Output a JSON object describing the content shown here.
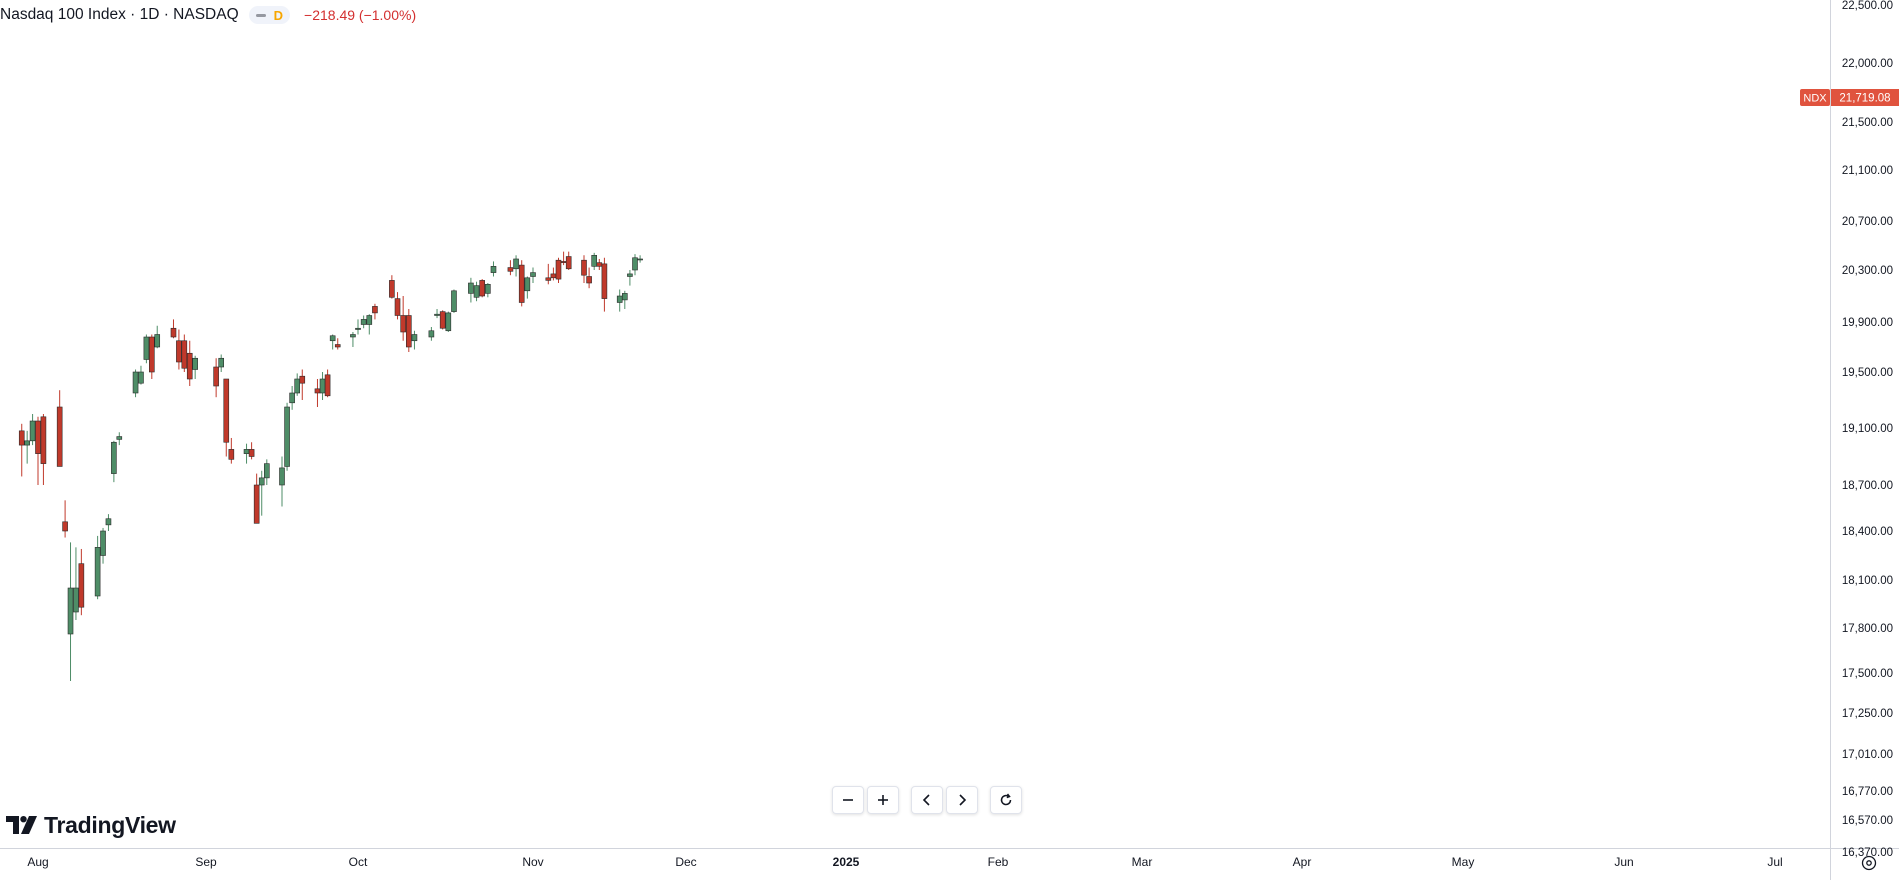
{
  "header": {
    "symbol": "Nasdaq 100 Index · 1D · NASDAQ",
    "interval_badge": "D",
    "change": "−218.49 (−1.00%)"
  },
  "price_tag": {
    "ticker": "NDX",
    "value": "21,719.08"
  },
  "brand": {
    "name": "TradingView"
  },
  "colors": {
    "up": "#4e8d67",
    "down": "#c0392b",
    "tag_bg": "#e0533e",
    "axis": "#131722"
  },
  "icons": [
    "minus-icon",
    "plus-icon",
    "chevron-left-icon",
    "chevron-right-icon",
    "reset-icon",
    "settings-icon"
  ],
  "chart_data": {
    "type": "candlestick",
    "series_name": "NDX",
    "y_ticks": [
      "22,500.00",
      "22,000.00",
      "21,500.00",
      "21,100.00",
      "20,700.00",
      "20,300.00",
      "19,900.00",
      "19,500.00",
      "19,100.00",
      "18,700.00",
      "18,400.00",
      "18,100.00",
      "17,800.00",
      "17,500.00",
      "17,250.00",
      "17,010.00",
      "16,770.00",
      "16,570.00",
      "16,370.00"
    ],
    "x_ticks": [
      "Aug",
      "Sep",
      "Oct",
      "Nov",
      "Dec",
      "2025",
      "Feb",
      "Mar",
      "Apr",
      "May",
      "Jun",
      "Jul"
    ],
    "last_price": 21719.08,
    "ohlc": [
      {
        "d": "2024-07-29",
        "o": 19080,
        "h": 19130,
        "l": 18760,
        "c": 18980
      },
      {
        "d": "2024-07-30",
        "o": 18980,
        "h": 19080,
        "l": 18850,
        "c": 19010
      },
      {
        "d": "2024-07-31",
        "o": 19010,
        "h": 19200,
        "l": 18980,
        "c": 19150
      },
      {
        "d": "2024-08-01",
        "o": 19150,
        "h": 19180,
        "l": 18700,
        "c": 18920
      },
      {
        "d": "2024-08-02",
        "o": 19180,
        "h": 19200,
        "l": 18700,
        "c": 18850
      },
      {
        "d": "2024-08-05",
        "o": 19250,
        "h": 19370,
        "l": 18850,
        "c": 18830
      },
      {
        "d": "2024-08-06",
        "o": 18460,
        "h": 18600,
        "l": 18360,
        "c": 18400
      },
      {
        "d": "2024-08-07",
        "o": 17760,
        "h": 18330,
        "l": 17450,
        "c": 18050
      },
      {
        "d": "2024-08-08",
        "o": 17900,
        "h": 18300,
        "l": 17850,
        "c": 18050
      },
      {
        "d": "2024-08-09",
        "o": 18200,
        "h": 18290,
        "l": 17880,
        "c": 17930
      },
      {
        "d": "2024-08-12",
        "o": 18000,
        "h": 18370,
        "l": 17980,
        "c": 18300
      },
      {
        "d": "2024-08-13",
        "o": 18250,
        "h": 18420,
        "l": 18200,
        "c": 18400
      },
      {
        "d": "2024-08-14",
        "o": 18440,
        "h": 18510,
        "l": 18400,
        "c": 18480
      },
      {
        "d": "2024-08-15",
        "o": 18780,
        "h": 19010,
        "l": 18720,
        "c": 19000
      },
      {
        "d": "2024-08-16",
        "o": 19020,
        "h": 19070,
        "l": 18980,
        "c": 19040
      },
      {
        "d": "2024-08-19",
        "o": 19350,
        "h": 19520,
        "l": 19320,
        "c": 19500
      },
      {
        "d": "2024-08-20",
        "o": 19420,
        "h": 19550,
        "l": 19410,
        "c": 19500
      },
      {
        "d": "2024-08-21",
        "o": 19600,
        "h": 19800,
        "l": 19570,
        "c": 19780
      },
      {
        "d": "2024-08-22",
        "o": 19780,
        "h": 19800,
        "l": 19450,
        "c": 19500
      },
      {
        "d": "2024-08-23",
        "o": 19700,
        "h": 19870,
        "l": 19690,
        "c": 19800
      },
      {
        "d": "2024-08-26",
        "o": 19850,
        "h": 19920,
        "l": 19770,
        "c": 19780
      },
      {
        "d": "2024-08-27",
        "o": 19750,
        "h": 19840,
        "l": 19520,
        "c": 19580
      },
      {
        "d": "2024-08-28",
        "o": 19750,
        "h": 19800,
        "l": 19500,
        "c": 19530
      },
      {
        "d": "2024-08-29",
        "o": 19650,
        "h": 19750,
        "l": 19400,
        "c": 19450
      },
      {
        "d": "2024-08-30",
        "o": 19520,
        "h": 19630,
        "l": 19450,
        "c": 19610
      },
      {
        "d": "2024-09-03",
        "o": 19540,
        "h": 19610,
        "l": 19320,
        "c": 19400
      },
      {
        "d": "2024-09-04",
        "o": 19540,
        "h": 19640,
        "l": 19500,
        "c": 19610
      },
      {
        "d": "2024-09-05",
        "o": 19450,
        "h": 19450,
        "l": 18900,
        "c": 19000
      },
      {
        "d": "2024-09-06",
        "o": 18950,
        "h": 19030,
        "l": 18850,
        "c": 18880
      },
      {
        "d": "2024-09-09",
        "o": 18920,
        "h": 18990,
        "l": 18850,
        "c": 18950
      },
      {
        "d": "2024-09-10",
        "o": 18950,
        "h": 19000,
        "l": 18880,
        "c": 18900
      },
      {
        "d": "2024-09-11",
        "o": 18700,
        "h": 18780,
        "l": 18450,
        "c": 18450
      },
      {
        "d": "2024-09-12",
        "o": 18700,
        "h": 18800,
        "l": 18500,
        "c": 18750
      },
      {
        "d": "2024-09-13",
        "o": 18750,
        "h": 18880,
        "l": 18700,
        "c": 18850
      },
      {
        "d": "2024-09-16",
        "o": 18700,
        "h": 18900,
        "l": 18560,
        "c": 18820
      },
      {
        "d": "2024-09-17",
        "o": 18830,
        "h": 19280,
        "l": 18800,
        "c": 19250
      },
      {
        "d": "2024-09-18",
        "o": 19280,
        "h": 19400,
        "l": 19230,
        "c": 19350
      },
      {
        "d": "2024-09-19",
        "o": 19350,
        "h": 19490,
        "l": 19330,
        "c": 19450
      },
      {
        "d": "2024-09-20",
        "o": 19470,
        "h": 19520,
        "l": 19300,
        "c": 19420
      },
      {
        "d": "2024-09-23",
        "o": 19380,
        "h": 19450,
        "l": 19250,
        "c": 19350
      },
      {
        "d": "2024-09-24",
        "o": 19350,
        "h": 19500,
        "l": 19300,
        "c": 19450
      },
      {
        "d": "2024-09-25",
        "o": 19480,
        "h": 19520,
        "l": 19320,
        "c": 19330
      },
      {
        "d": "2024-09-26",
        "o": 19750,
        "h": 19800,
        "l": 19680,
        "c": 19790
      },
      {
        "d": "2024-09-27",
        "o": 19720,
        "h": 19770,
        "l": 19680,
        "c": 19700
      },
      {
        "d": "2024-09-30",
        "o": 19780,
        "h": 19820,
        "l": 19700,
        "c": 19800
      },
      {
        "d": "2024-10-01",
        "o": 19840,
        "h": 19920,
        "l": 19800,
        "c": 19850
      },
      {
        "d": "2024-10-02",
        "o": 19880,
        "h": 19950,
        "l": 19850,
        "c": 19920
      },
      {
        "d": "2024-10-03",
        "o": 19880,
        "h": 19960,
        "l": 19800,
        "c": 19950
      },
      {
        "d": "2024-10-04",
        "o": 20020,
        "h": 20040,
        "l": 19920,
        "c": 19970
      },
      {
        "d": "2024-10-07",
        "o": 20220,
        "h": 20260,
        "l": 20080,
        "c": 20090
      },
      {
        "d": "2024-10-08",
        "o": 20080,
        "h": 20130,
        "l": 19920,
        "c": 19950
      },
      {
        "d": "2024-10-09",
        "o": 19950,
        "h": 20100,
        "l": 19750,
        "c": 19820
      },
      {
        "d": "2024-10-10",
        "o": 19950,
        "h": 20000,
        "l": 19660,
        "c": 19700
      },
      {
        "d": "2024-10-11",
        "o": 19750,
        "h": 19830,
        "l": 19680,
        "c": 19800
      },
      {
        "d": "2024-10-14",
        "o": 19780,
        "h": 19860,
        "l": 19750,
        "c": 19830
      },
      {
        "d": "2024-10-15",
        "o": 19950,
        "h": 20000,
        "l": 19930,
        "c": 19960
      },
      {
        "d": "2024-10-16",
        "o": 19980,
        "h": 19990,
        "l": 19840,
        "c": 19850
      },
      {
        "d": "2024-10-17",
        "o": 19830,
        "h": 19980,
        "l": 19820,
        "c": 19970
      },
      {
        "d": "2024-10-18",
        "o": 19980,
        "h": 20150,
        "l": 19970,
        "c": 20140
      },
      {
        "d": "2024-10-21",
        "o": 20120,
        "h": 20240,
        "l": 20050,
        "c": 20200
      },
      {
        "d": "2024-10-22",
        "o": 20090,
        "h": 20210,
        "l": 20060,
        "c": 20180
      },
      {
        "d": "2024-10-23",
        "o": 20220,
        "h": 20230,
        "l": 20090,
        "c": 20100
      },
      {
        "d": "2024-10-24",
        "o": 20120,
        "h": 20200,
        "l": 20090,
        "c": 20190
      },
      {
        "d": "2024-10-25",
        "o": 20280,
        "h": 20370,
        "l": 20250,
        "c": 20330
      },
      {
        "d": "2024-10-28",
        "o": 20320,
        "h": 20380,
        "l": 20260,
        "c": 20290
      },
      {
        "d": "2024-10-29",
        "o": 20310,
        "h": 20420,
        "l": 20250,
        "c": 20390
      },
      {
        "d": "2024-10-30",
        "o": 20340,
        "h": 20380,
        "l": 20020,
        "c": 20050
      },
      {
        "d": "2024-10-31",
        "o": 20140,
        "h": 20250,
        "l": 20080,
        "c": 20240
      },
      {
        "d": "2024-11-01",
        "o": 20250,
        "h": 20320,
        "l": 20200,
        "c": 20280
      },
      {
        "d": "2024-11-04",
        "o": 20240,
        "h": 20350,
        "l": 20190,
        "c": 20220
      },
      {
        "d": "2024-11-05",
        "o": 20270,
        "h": 20320,
        "l": 20220,
        "c": 20240
      },
      {
        "d": "2024-11-06",
        "o": 20380,
        "h": 20400,
        "l": 20200,
        "c": 20230
      },
      {
        "d": "2024-11-07",
        "o": 20370,
        "h": 20450,
        "l": 20340,
        "c": 20360
      },
      {
        "d": "2024-11-08",
        "o": 20410,
        "h": 20450,
        "l": 20300,
        "c": 20310
      },
      {
        "d": "2024-11-11",
        "o": 20380,
        "h": 20420,
        "l": 20200,
        "c": 20260
      },
      {
        "d": "2024-11-12",
        "o": 20250,
        "h": 20320,
        "l": 20160,
        "c": 20200
      },
      {
        "d": "2024-11-13",
        "o": 20330,
        "h": 20440,
        "l": 20300,
        "c": 20420
      },
      {
        "d": "2024-11-14",
        "o": 20360,
        "h": 20390,
        "l": 20300,
        "c": 20330
      },
      {
        "d": "2024-11-15",
        "o": 20350,
        "h": 20400,
        "l": 19980,
        "c": 20080
      },
      {
        "d": "2024-11-18",
        "o": 20050,
        "h": 20150,
        "l": 19980,
        "c": 20100
      },
      {
        "d": "2024-11-19",
        "o": 20070,
        "h": 20140,
        "l": 20000,
        "c": 20120
      },
      {
        "d": "2024-11-20",
        "o": 20250,
        "h": 20300,
        "l": 20180,
        "c": 20270
      },
      {
        "d": "2024-11-21",
        "o": 20300,
        "h": 20430,
        "l": 20260,
        "c": 20400
      },
      {
        "d": "2024-11-22",
        "o": 20390,
        "h": 20420,
        "l": 20360,
        "c": 20390
      }
    ]
  }
}
